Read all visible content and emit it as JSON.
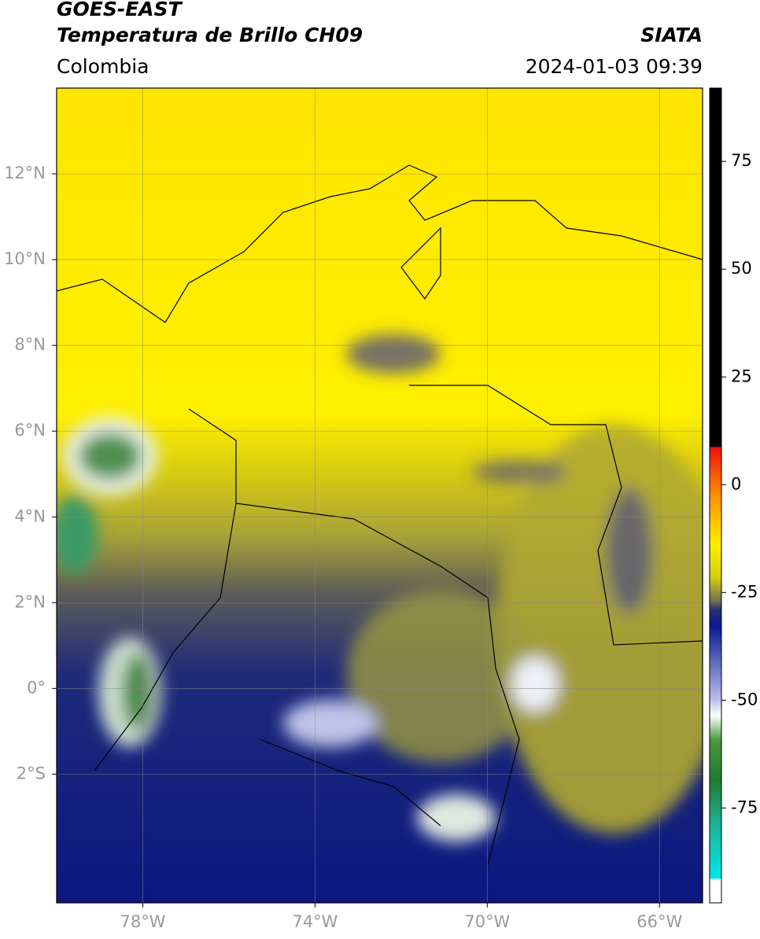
{
  "header": {
    "title": "GOES-EAST",
    "subtitle": "Temperatura de Brillo CH09",
    "source": "SIATA",
    "region": "Colombia",
    "datetime": "2024-01-03 09:39"
  },
  "map": {
    "xlim": [
      -80,
      -65
    ],
    "ylim": [
      -5,
      14
    ],
    "xticks": [
      {
        "value": -78,
        "label": "78°W"
      },
      {
        "value": -74,
        "label": "74°W"
      },
      {
        "value": -70,
        "label": "70°W"
      },
      {
        "value": -66,
        "label": "66°W"
      }
    ],
    "yticks": [
      {
        "value": 12,
        "label": "12°N"
      },
      {
        "value": 10,
        "label": "10°N"
      },
      {
        "value": 8,
        "label": "8°N"
      },
      {
        "value": 6,
        "label": "6°N"
      },
      {
        "value": 4,
        "label": "4°N"
      },
      {
        "value": 2,
        "label": "2°N"
      },
      {
        "value": 0,
        "label": "0°"
      },
      {
        "value": -2,
        "label": "2°S"
      }
    ]
  },
  "colorbar": {
    "lim": [
      -97,
      92
    ],
    "ticks": [
      75,
      50,
      25,
      0,
      -25,
      -50,
      -75
    ]
  }
}
